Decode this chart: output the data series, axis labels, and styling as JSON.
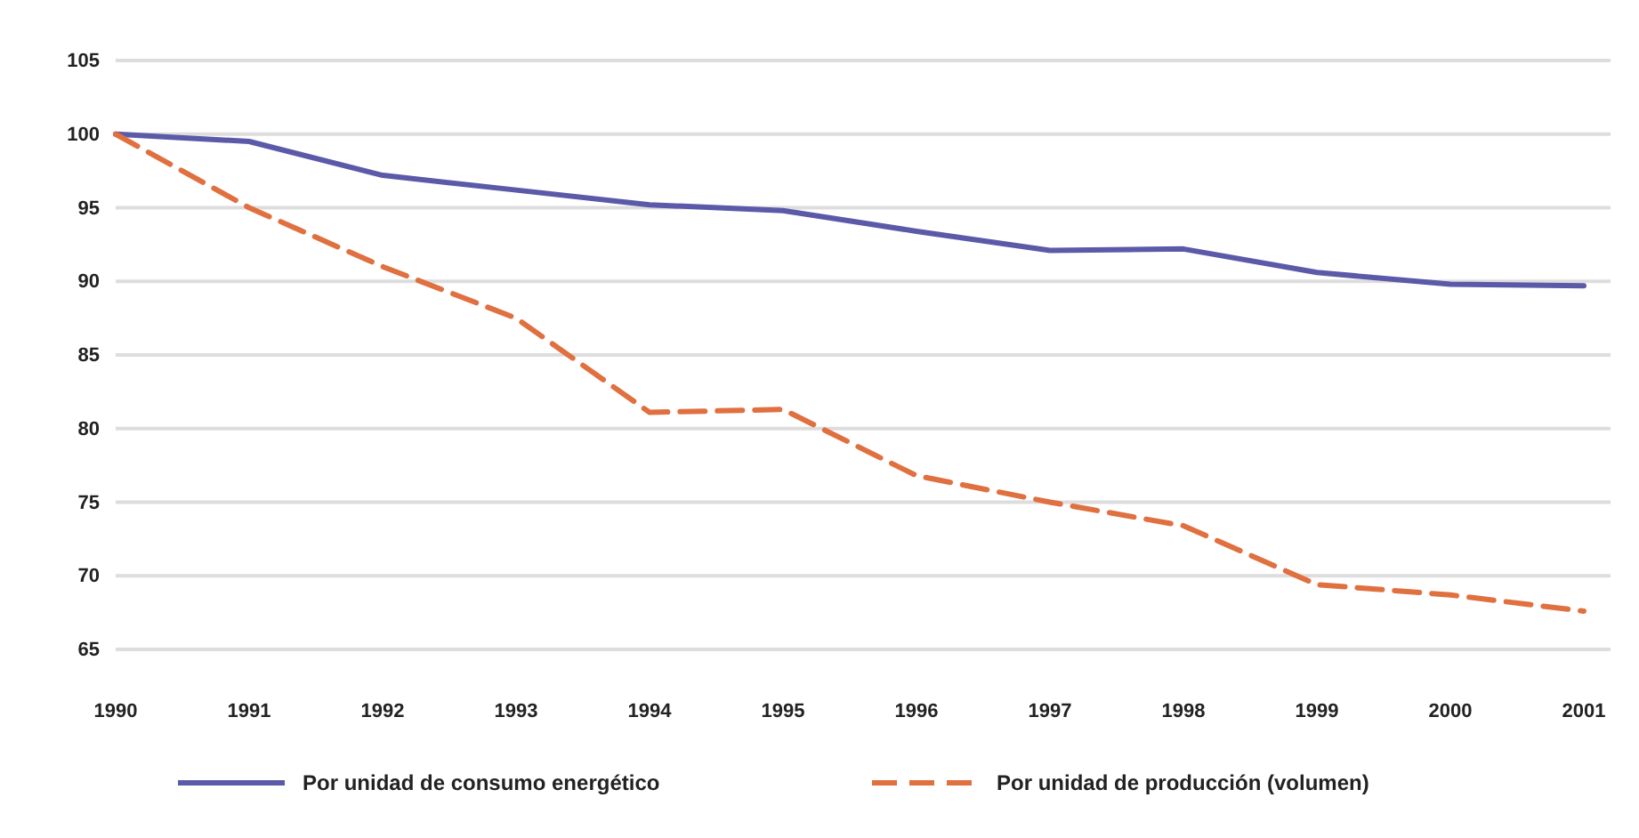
{
  "chart_data": {
    "type": "line",
    "categories": [
      "1990",
      "1991",
      "1992",
      "1993",
      "1994",
      "1995",
      "1996",
      "1997",
      "1998",
      "1999",
      "2000",
      "2001"
    ],
    "series": [
      {
        "name": "Por unidad de consumo energético",
        "color": "#5a5aa8",
        "line_style": "solid",
        "values": [
          100,
          99.5,
          97.2,
          96.2,
          95.2,
          94.8,
          93.4,
          92.1,
          92.2,
          90.6,
          89.8,
          89.7
        ]
      },
      {
        "name": "Por unidad de producción (volumen)",
        "color": "#e07040",
        "line_style": "dashed",
        "values": [
          100,
          95,
          91,
          87.5,
          81.1,
          81.3,
          76.8,
          75,
          73.4,
          69.4,
          68.7,
          67.6
        ]
      }
    ],
    "ylim": [
      65,
      105
    ],
    "yticks": [
      65,
      70,
      75,
      80,
      85,
      90,
      95,
      100,
      105
    ],
    "grid": "y",
    "legend": "bottom"
  }
}
